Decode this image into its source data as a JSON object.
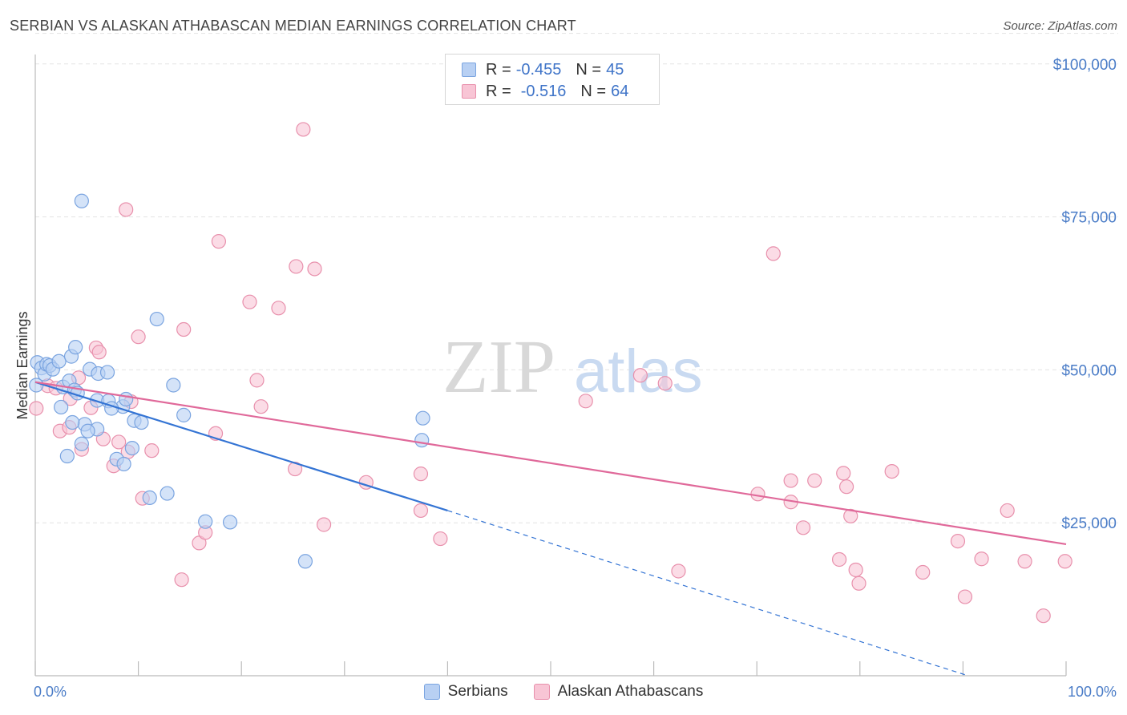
{
  "title": "SERBIAN VS ALASKAN ATHABASCAN MEDIAN EARNINGS CORRELATION CHART",
  "source": "Source: ZipAtlas.com",
  "watermark": {
    "zip": "ZIP",
    "atlas": "atlas"
  },
  "legend_top": {
    "rows": [
      {
        "r_label": "R =",
        "r_value": "-0.455",
        "n_label": "N =",
        "n_value": "45"
      },
      {
        "r_label": "R =",
        "r_value": "-0.516",
        "n_label": "N =",
        "n_value": "64"
      }
    ]
  },
  "legend_bottom": {
    "series1": "Serbians",
    "series2": "Alaskan Athabascans"
  },
  "colors": {
    "blue_fill": "#b8d0f3",
    "blue_stroke": "#7aa4e0",
    "blue_line": "#3474d4",
    "pink_fill": "#f8c5d5",
    "pink_stroke": "#e890ac",
    "pink_line": "#e0699a",
    "tick_text": "#4a7cc7",
    "grid": "#e3e3e3"
  },
  "chart_data": {
    "type": "scatter",
    "title": "SERBIAN VS ALASKAN ATHABASCAN MEDIAN EARNINGS CORRELATION CHART",
    "xlabel": "",
    "ylabel": "Median Earnings",
    "xlim": [
      0,
      100
    ],
    "ylim": [
      0,
      105000
    ],
    "x_tick_labels": [
      "0.0%",
      "100.0%"
    ],
    "y_ticks": [
      25000,
      50000,
      75000,
      100000
    ],
    "y_tick_labels": [
      "$25,000",
      "$50,000",
      "$75,000",
      "$100,000"
    ],
    "grid": true,
    "legend_position": "top-center",
    "series": [
      {
        "name": "Serbians",
        "R": -0.455,
        "N": 45,
        "trend": {
          "x0": 0,
          "y0": 48000,
          "x1": 40,
          "y1": 27000,
          "dashed_to_x": 90.5,
          "dashed_to_y": 0
        },
        "points": [
          [
            0.2,
            51200
          ],
          [
            0.6,
            50300
          ],
          [
            0.9,
            49300
          ],
          [
            1.1,
            50900
          ],
          [
            1.4,
            50700
          ],
          [
            1.7,
            50100
          ],
          [
            2.3,
            51400
          ],
          [
            3.5,
            52200
          ],
          [
            2.7,
            47200
          ],
          [
            3.3,
            48200
          ],
          [
            3.8,
            46700
          ],
          [
            4.1,
            46200
          ],
          [
            2.5,
            43900
          ],
          [
            5.3,
            50100
          ],
          [
            6.1,
            49400
          ],
          [
            7.0,
            49600
          ],
          [
            6.0,
            45000
          ],
          [
            7.1,
            44900
          ],
          [
            8.5,
            44000
          ],
          [
            8.8,
            45200
          ],
          [
            7.4,
            43700
          ],
          [
            4.8,
            41100
          ],
          [
            3.6,
            41400
          ],
          [
            6.0,
            40300
          ],
          [
            5.1,
            40000
          ],
          [
            9.6,
            41700
          ],
          [
            10.3,
            41400
          ],
          [
            14.4,
            42600
          ],
          [
            13.4,
            47500
          ],
          [
            11.8,
            58300
          ],
          [
            4.5,
            77600
          ],
          [
            3.1,
            35900
          ],
          [
            4.5,
            37900
          ],
          [
            7.9,
            35400
          ],
          [
            8.6,
            34600
          ],
          [
            11.1,
            29100
          ],
          [
            12.8,
            29800
          ],
          [
            16.5,
            25200
          ],
          [
            18.9,
            25100
          ],
          [
            26.2,
            18700
          ],
          [
            37.6,
            42100
          ],
          [
            37.5,
            38500
          ],
          [
            3.9,
            53700
          ],
          [
            9.4,
            37200
          ],
          [
            0.1,
            47500
          ]
        ]
      },
      {
        "name": "Alaskan Athabascans",
        "R": -0.516,
        "N": 64,
        "trend": {
          "x0": 0,
          "y0": 48000,
          "x1": 100,
          "y1": 21500
        },
        "points": [
          [
            0.1,
            43700
          ],
          [
            1.2,
            47400
          ],
          [
            2.4,
            40000
          ],
          [
            3.3,
            40600
          ],
          [
            3.4,
            45300
          ],
          [
            4.2,
            48700
          ],
          [
            5.4,
            43800
          ],
          [
            5.9,
            53600
          ],
          [
            6.2,
            52900
          ],
          [
            6.6,
            38700
          ],
          [
            7.6,
            34300
          ],
          [
            8.1,
            38200
          ],
          [
            9.0,
            36600
          ],
          [
            10.4,
            29000
          ],
          [
            9.3,
            44800
          ],
          [
            4.5,
            37000
          ],
          [
            8.8,
            76200
          ],
          [
            10.0,
            55400
          ],
          [
            11.3,
            36800
          ],
          [
            14.4,
            56600
          ],
          [
            14.2,
            15700
          ],
          [
            15.9,
            21700
          ],
          [
            16.5,
            23400
          ],
          [
            17.5,
            39600
          ],
          [
            17.8,
            71000
          ],
          [
            20.8,
            61100
          ],
          [
            21.5,
            48300
          ],
          [
            21.9,
            44000
          ],
          [
            23.6,
            60100
          ],
          [
            25.3,
            66900
          ],
          [
            26.0,
            89300
          ],
          [
            27.1,
            66500
          ],
          [
            25.2,
            33800
          ],
          [
            28.0,
            24700
          ],
          [
            32.1,
            31600
          ],
          [
            37.4,
            27000
          ],
          [
            37.4,
            33000
          ],
          [
            39.3,
            22400
          ],
          [
            53.4,
            44900
          ],
          [
            58.7,
            49100
          ],
          [
            61.1,
            47800
          ],
          [
            62.4,
            17100
          ],
          [
            70.1,
            29700
          ],
          [
            71.6,
            69000
          ],
          [
            73.3,
            31900
          ],
          [
            73.3,
            28400
          ],
          [
            75.6,
            31900
          ],
          [
            74.5,
            24200
          ],
          [
            78.0,
            19000
          ],
          [
            78.4,
            33100
          ],
          [
            78.7,
            30900
          ],
          [
            79.1,
            26100
          ],
          [
            79.6,
            17300
          ],
          [
            79.9,
            15100
          ],
          [
            83.1,
            33400
          ],
          [
            86.1,
            16900
          ],
          [
            89.5,
            22000
          ],
          [
            90.2,
            12900
          ],
          [
            91.8,
            19100
          ],
          [
            94.3,
            27000
          ],
          [
            96.0,
            18700
          ],
          [
            97.8,
            9800
          ],
          [
            99.9,
            18700
          ],
          [
            2.0,
            47000
          ]
        ]
      }
    ]
  }
}
